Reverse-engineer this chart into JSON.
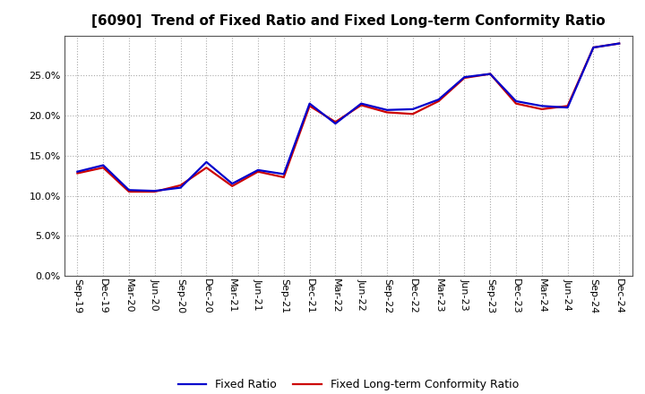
{
  "title": "[6090]  Trend of Fixed Ratio and Fixed Long-term Conformity Ratio",
  "x_labels": [
    "Sep-19",
    "Dec-19",
    "Mar-20",
    "Jun-20",
    "Sep-20",
    "Dec-20",
    "Mar-21",
    "Jun-21",
    "Sep-21",
    "Dec-21",
    "Mar-22",
    "Jun-22",
    "Sep-22",
    "Dec-22",
    "Mar-23",
    "Jun-23",
    "Sep-23",
    "Dec-23",
    "Mar-24",
    "Jun-24",
    "Sep-24",
    "Dec-24"
  ],
  "fixed_ratio": [
    0.13,
    0.138,
    0.107,
    0.106,
    0.11,
    0.142,
    0.115,
    0.132,
    0.127,
    0.215,
    0.19,
    0.215,
    0.207,
    0.208,
    0.22,
    0.248,
    0.252,
    0.218,
    0.212,
    0.21,
    0.285,
    0.29
  ],
  "fixed_lt_ratio": [
    0.128,
    0.135,
    0.105,
    0.105,
    0.113,
    0.135,
    0.112,
    0.13,
    0.123,
    0.212,
    0.192,
    0.213,
    0.204,
    0.202,
    0.218,
    0.247,
    0.252,
    0.215,
    0.208,
    0.212,
    0.285,
    0.29
  ],
  "fixed_ratio_color": "#0000cc",
  "fixed_lt_ratio_color": "#cc0000",
  "ylim": [
    0.0,
    0.3
  ],
  "yticks": [
    0.0,
    0.05,
    0.1,
    0.15,
    0.2,
    0.25
  ],
  "background_color": "#ffffff",
  "grid_color": "#aaaaaa",
  "legend_fixed_ratio": "Fixed Ratio",
  "legend_fixed_lt_ratio": "Fixed Long-term Conformity Ratio",
  "title_fontsize": 11,
  "tick_fontsize": 8,
  "legend_fontsize": 9
}
